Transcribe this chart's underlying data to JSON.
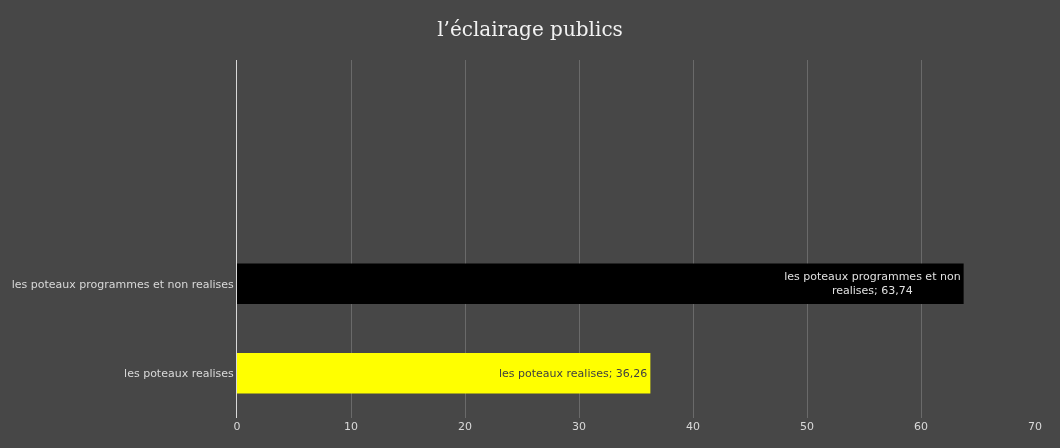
{
  "chart_data": {
    "type": "bar",
    "orientation": "horizontal",
    "title": "l’éclairage publics",
    "categories": [
      null,
      null,
      "les poteaux programmes et non realises",
      "les poteaux realises"
    ],
    "values": [
      null,
      null,
      63.74,
      36.26
    ],
    "colors": [
      "#000000",
      "#000000",
      "#000000",
      "#ffff00"
    ],
    "value_labels": [
      null,
      null,
      "les poteaux programmes et non realises; 63,74",
      "les poteaux realises; 36,26"
    ],
    "xlim": [
      0,
      70
    ],
    "xticks": [
      0,
      10,
      20,
      30,
      40,
      50,
      60,
      70
    ],
    "grid": "x"
  }
}
